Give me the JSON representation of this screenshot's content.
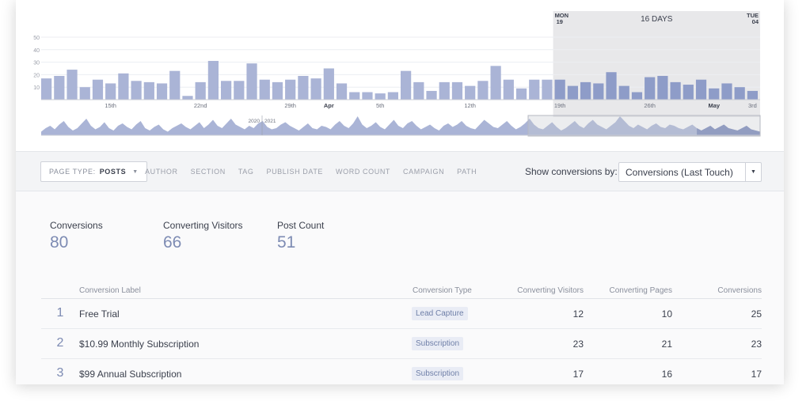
{
  "colors": {
    "bar": "#aab4d6",
    "bar_selected": "#8e9cc8",
    "selection": "#e8e8ea",
    "overview": "#aab4d6",
    "overview_dark": "#7584b8",
    "accent_number": "#7d8bb3",
    "badge_bg": "#e9ecf5"
  },
  "chart_data": {
    "type": "bar",
    "ylim": [
      0,
      50
    ],
    "y_ticks": [
      "50",
      "40",
      "30",
      "20",
      "10"
    ],
    "x_tick_labels": [
      {
        "label": "15th",
        "bar_index": 5,
        "bold": false
      },
      {
        "label": "22nd",
        "bar_index": 12,
        "bold": false
      },
      {
        "label": "29th",
        "bar_index": 19,
        "bold": false
      },
      {
        "label": "Apr",
        "bar_index": 22,
        "bold": true
      },
      {
        "label": "5th",
        "bar_index": 26,
        "bold": false
      },
      {
        "label": "12th",
        "bar_index": 33,
        "bold": false
      },
      {
        "label": "19th",
        "bar_index": 40,
        "bold": false
      },
      {
        "label": "26th",
        "bar_index": 47,
        "bold": false
      },
      {
        "label": "May",
        "bar_index": 52,
        "bold": true
      },
      {
        "label": "3rd",
        "bar_index": 55,
        "bold": false
      }
    ],
    "values": [
      17,
      19,
      24,
      10,
      16,
      13,
      21,
      15,
      14,
      13,
      23,
      3,
      14,
      31,
      15,
      15,
      29,
      16,
      14,
      16,
      19,
      17,
      25,
      13,
      6,
      6,
      5,
      6,
      23,
      14,
      7,
      14,
      14,
      11,
      15,
      27,
      16,
      9,
      16,
      16,
      16,
      11,
      14,
      13,
      22,
      11,
      6,
      18,
      19,
      14,
      12,
      16,
      9,
      13,
      10,
      7
    ],
    "selected_range": [
      40,
      55
    ],
    "selection_label": "16 DAYS",
    "selection_start": {
      "day": "MON",
      "date": "19"
    },
    "selection_end": {
      "day": "TUE",
      "date": "04"
    },
    "overview": {
      "year_labels": [
        "2020",
        "2021"
      ],
      "values": [
        3,
        6,
        8,
        5,
        9,
        12,
        7,
        4,
        6,
        10,
        14,
        8,
        5,
        7,
        11,
        6,
        4,
        8,
        10,
        7,
        5,
        9,
        12,
        6,
        4,
        7,
        9,
        5,
        3,
        6,
        8,
        10,
        7,
        5,
        8,
        11,
        6,
        9,
        13,
        8,
        6,
        10,
        14,
        9,
        7,
        5,
        8,
        6,
        10,
        12,
        7,
        5,
        6,
        9,
        11,
        8,
        6,
        4,
        7,
        10,
        6,
        5,
        8,
        7,
        5,
        9,
        12,
        8,
        6,
        10,
        16,
        9,
        6,
        8,
        11,
        7,
        5,
        9,
        13,
        8,
        6,
        10,
        12,
        8,
        5,
        7,
        9,
        6,
        4,
        8,
        10,
        7,
        9,
        12,
        8,
        6,
        5,
        9,
        13,
        10,
        7,
        6,
        9,
        12,
        8,
        5,
        7,
        10,
        14,
        9,
        6,
        5,
        8,
        11,
        7,
        4,
        6,
        9,
        12,
        8,
        6,
        10,
        13,
        9,
        7,
        5,
        8,
        11,
        16,
        12,
        8,
        6,
        9,
        7,
        5,
        8,
        10,
        7,
        6,
        9,
        8,
        6,
        5,
        7,
        9,
        6,
        4,
        6,
        8,
        5,
        7,
        9,
        6,
        5,
        4,
        6,
        8,
        5,
        4,
        3
      ]
    }
  },
  "filters": {
    "page_type_label": "PAGE TYPE:",
    "page_type_value": "POSTS",
    "tabs": [
      "AUTHOR",
      "SECTION",
      "TAG",
      "PUBLISH DATE",
      "WORD COUNT",
      "CAMPAIGN",
      "PATH"
    ],
    "show_by_label": "Show conversions by:",
    "show_by_value": "Conversions (Last Touch)"
  },
  "stats": {
    "conversions": {
      "label": "Conversions",
      "value": "80"
    },
    "visitors": {
      "label": "Converting Visitors",
      "value": "66"
    },
    "posts": {
      "label": "Post Count",
      "value": "51"
    }
  },
  "table": {
    "headers": {
      "label": "Conversion Label",
      "type": "Conversion Type",
      "visitors": "Converting Visitors",
      "pages": "Converting Pages",
      "conversions": "Conversions"
    },
    "rows": [
      {
        "idx": "1",
        "label": "Free Trial",
        "type": "Lead Capture",
        "visitors": "12",
        "pages": "10",
        "conversions": "25"
      },
      {
        "idx": "2",
        "label": "$10.99 Monthly Subscription",
        "type": "Subscription",
        "visitors": "23",
        "pages": "21",
        "conversions": "23"
      },
      {
        "idx": "3",
        "label": "$99 Annual Subscription",
        "type": "Subscription",
        "visitors": "17",
        "pages": "16",
        "conversions": "17"
      }
    ]
  }
}
